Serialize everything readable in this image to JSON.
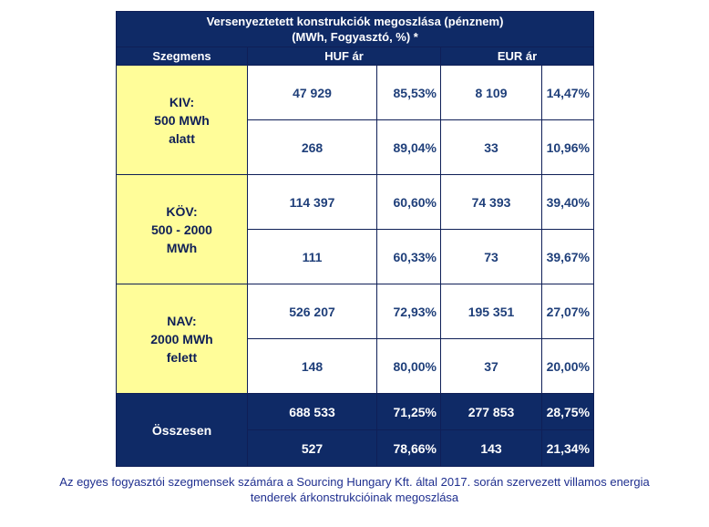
{
  "title_line1": "Versenyeztetett konstrukciók megoszlása (pénznem)",
  "title_line2": "(MWh, Fogyasztó, %) *",
  "headers": {
    "segment": "Szegmens",
    "huf": "HUF ár",
    "eur": "EUR ár"
  },
  "segments": [
    {
      "label_lines": [
        "KIV:",
        "500 MWh",
        "alatt"
      ],
      "rows": [
        {
          "huf_value": "47 929",
          "huf_pct": "85,53%",
          "eur_value": "8 109",
          "eur_pct": "14,47%"
        },
        {
          "huf_value": "268",
          "huf_pct": "89,04%",
          "eur_value": "33",
          "eur_pct": "10,96%"
        }
      ]
    },
    {
      "label_lines": [
        "KÖV:",
        "500 - 2000",
        "MWh"
      ],
      "rows": [
        {
          "huf_value": "114 397",
          "huf_pct": "60,60%",
          "eur_value": "74 393",
          "eur_pct": "39,40%"
        },
        {
          "huf_value": "111",
          "huf_pct": "60,33%",
          "eur_value": "73",
          "eur_pct": "39,67%"
        }
      ]
    },
    {
      "label_lines": [
        "NAV:",
        "2000 MWh",
        "felett"
      ],
      "rows": [
        {
          "huf_value": "526 207",
          "huf_pct": "72,93%",
          "eur_value": "195 351",
          "eur_pct": "27,07%"
        },
        {
          "huf_value": "148",
          "huf_pct": "80,00%",
          "eur_value": "37",
          "eur_pct": "20,00%"
        }
      ]
    }
  ],
  "total": {
    "label": "Összesen",
    "rows": [
      {
        "huf_value": "688 533",
        "huf_pct": "71,25%",
        "eur_value": "277 853",
        "eur_pct": "28,75%"
      },
      {
        "huf_value": "527",
        "huf_pct": "78,66%",
        "eur_value": "143",
        "eur_pct": "21,34%"
      }
    ]
  },
  "caption_line1": "Az egyes fogyasztói szegmensek számára a Sourcing Hungary Kft. által 2017. során szervezett villamos energia",
  "caption_line2": "tenderek árkonstrukcióinak megoszlása"
}
